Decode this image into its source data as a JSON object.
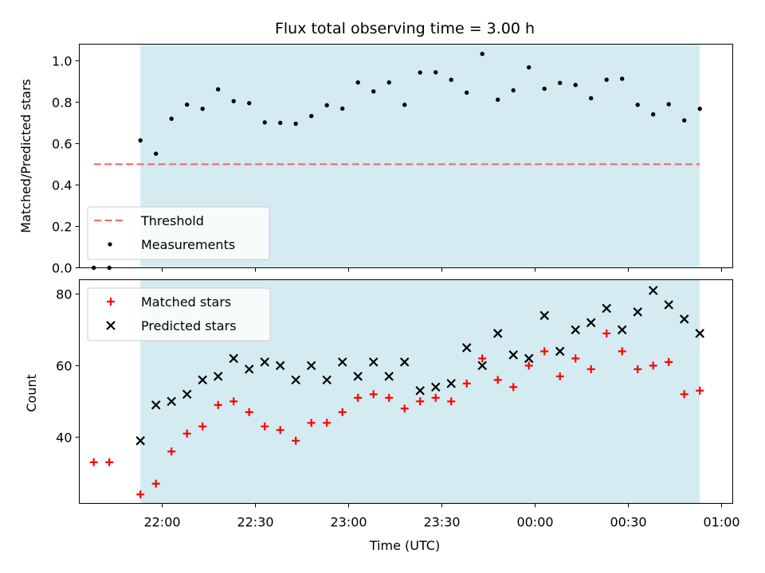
{
  "title": "Flux total observing time = 3.00 h",
  "colors": {
    "shade": "#d4ebf1",
    "threshold": "#f07070",
    "measurement": "#000000",
    "matched": "#ff0000",
    "predicted": "#000000"
  },
  "chart_data": [
    {
      "type": "scatter",
      "ylabel": "Matched/Predicted stars",
      "ylim": [
        0,
        1.08
      ],
      "yticks": [
        0.0,
        0.2,
        0.4,
        0.6,
        0.8,
        1.0
      ],
      "ytick_labels": [
        "0.0",
        "0.2",
        "0.4",
        "0.6",
        "0.8",
        "1.0"
      ],
      "legend": {
        "position": "lower-left",
        "entries": [
          "Threshold",
          "Measurements"
        ]
      },
      "shaded_span": [
        "21:53",
        "00:53"
      ],
      "threshold": {
        "name": "Threshold",
        "y": 0.5,
        "x_range": [
          "21:38",
          "00:53"
        ],
        "style": "dashed"
      },
      "series": [
        {
          "name": "Measurements",
          "marker": "dot",
          "x": [
            "21:38",
            "21:43",
            "21:53",
            "21:58",
            "22:03",
            "22:08",
            "22:13",
            "22:18",
            "22:23",
            "22:28",
            "22:33",
            "22:38",
            "22:43",
            "22:48",
            "22:53",
            "22:58",
            "23:03",
            "23:08",
            "23:13",
            "23:18",
            "23:23",
            "23:28",
            "23:33",
            "23:38",
            "23:43",
            "23:48",
            "23:53",
            "23:58",
            "00:03",
            "00:08",
            "00:13",
            "00:18",
            "00:23",
            "00:28",
            "00:33",
            "00:38",
            "00:43",
            "00:48",
            "00:53"
          ],
          "values": [
            0.0,
            0.0,
            0.615,
            0.551,
            0.72,
            0.788,
            0.768,
            0.862,
            0.805,
            0.795,
            0.702,
            0.7,
            0.696,
            0.733,
            0.785,
            0.769,
            0.895,
            0.852,
            0.895,
            0.787,
            0.943,
            0.944,
            0.908,
            0.846,
            1.033,
            0.812,
            0.857,
            0.968,
            0.865,
            0.893,
            0.883,
            0.819,
            0.908,
            0.913,
            0.787,
            0.741,
            0.79,
            0.712,
            0.768
          ]
        }
      ]
    },
    {
      "type": "scatter",
      "ylabel": "Count",
      "xlabel": "Time (UTC)",
      "ylim": [
        21.5,
        84
      ],
      "yticks": [
        40,
        60,
        80
      ],
      "ytick_labels": [
        "40",
        "60",
        "80"
      ],
      "xticks": [
        "22:00",
        "22:30",
        "23:00",
        "23:30",
        "00:00",
        "00:30",
        "01:00"
      ],
      "legend": {
        "position": "upper-left",
        "entries": [
          "Matched stars",
          "Predicted stars"
        ]
      },
      "shaded_span": [
        "21:53",
        "00:53"
      ],
      "series": [
        {
          "name": "Matched stars",
          "marker": "plus",
          "x": [
            "21:38",
            "21:43",
            "21:53",
            "21:58",
            "22:03",
            "22:08",
            "22:13",
            "22:18",
            "22:23",
            "22:28",
            "22:33",
            "22:38",
            "22:43",
            "22:48",
            "22:53",
            "22:58",
            "23:03",
            "23:08",
            "23:13",
            "23:18",
            "23:23",
            "23:28",
            "23:33",
            "23:38",
            "23:43",
            "23:48",
            "23:53",
            "23:58",
            "00:03",
            "00:08",
            "00:13",
            "00:18",
            "00:23",
            "00:28",
            "00:33",
            "00:38",
            "00:43",
            "00:48",
            "00:53"
          ],
          "values": [
            33,
            33,
            24,
            27,
            36,
            41,
            43,
            49,
            50,
            47,
            43,
            42,
            39,
            44,
            44,
            47,
            51,
            52,
            51,
            48,
            50,
            51,
            50,
            55,
            62,
            56,
            54,
            60,
            64,
            57,
            62,
            59,
            69,
            64,
            59,
            60,
            61,
            52,
            53
          ]
        },
        {
          "name": "Predicted stars",
          "marker": "x",
          "x": [
            "21:53",
            "21:58",
            "22:03",
            "22:08",
            "22:13",
            "22:18",
            "22:23",
            "22:28",
            "22:33",
            "22:38",
            "22:43",
            "22:48",
            "22:53",
            "22:58",
            "23:03",
            "23:08",
            "23:13",
            "23:18",
            "23:23",
            "23:28",
            "23:33",
            "23:38",
            "23:43",
            "23:48",
            "23:53",
            "23:58",
            "00:03",
            "00:08",
            "00:13",
            "00:18",
            "00:23",
            "00:28",
            "00:33",
            "00:38",
            "00:43",
            "00:48",
            "00:53"
          ],
          "values": [
            39,
            49,
            50,
            52,
            56,
            57,
            62,
            59,
            61,
            60,
            56,
            60,
            56,
            61,
            57,
            61,
            57,
            61,
            53,
            54,
            55,
            65,
            60,
            69,
            63,
            62,
            74,
            64,
            70,
            72,
            76,
            70,
            75,
            81,
            77,
            73,
            69
          ]
        }
      ]
    }
  ]
}
